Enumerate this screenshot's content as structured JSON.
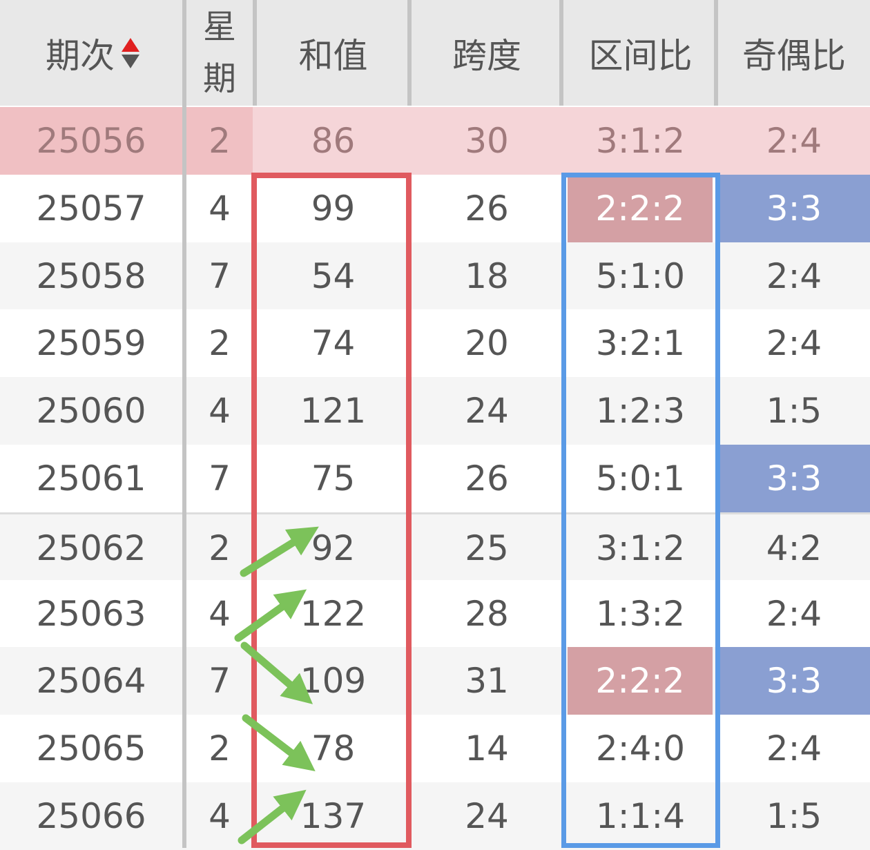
{
  "header": {
    "columns": [
      "期次",
      "星",
      "期",
      "和值",
      "跨度",
      "区间比",
      "奇偶比"
    ],
    "sort_icon": "sort-up-down-icon"
  },
  "colors": {
    "highlight_row": "#f5d5d8",
    "zone_highlight": "#d4a0a4",
    "odd_even_highlight": "#8a9fd2",
    "red_box": "#e05a5f",
    "blue_box": "#5a9ae6",
    "arrow": "#7cc25a"
  },
  "rows": [
    {
      "issue": "25056",
      "weekday": "2",
      "sum": "86",
      "span": "30",
      "zone": "3:1:2",
      "odd_even": "2:4",
      "highlighted": true
    },
    {
      "issue": "25057",
      "weekday": "4",
      "sum": "99",
      "span": "26",
      "zone": "2:2:2",
      "odd_even": "3:3",
      "zone_hl": true,
      "oe_hl": true
    },
    {
      "issue": "25058",
      "weekday": "7",
      "sum": "54",
      "span": "18",
      "zone": "5:1:0",
      "odd_even": "2:4"
    },
    {
      "issue": "25059",
      "weekday": "2",
      "sum": "74",
      "span": "20",
      "zone": "3:2:1",
      "odd_even": "2:4"
    },
    {
      "issue": "25060",
      "weekday": "4",
      "sum": "121",
      "span": "24",
      "zone": "1:2:3",
      "odd_even": "1:5"
    },
    {
      "issue": "25061",
      "weekday": "7",
      "sum": "75",
      "span": "26",
      "zone": "5:0:1",
      "odd_even": "3:3",
      "oe_hl": true
    },
    {
      "issue": "25062",
      "weekday": "2",
      "sum": "92",
      "span": "25",
      "zone": "3:1:2",
      "odd_even": "4:2"
    },
    {
      "issue": "25063",
      "weekday": "4",
      "sum": "122",
      "span": "28",
      "zone": "1:3:2",
      "odd_even": "2:4"
    },
    {
      "issue": "25064",
      "weekday": "7",
      "sum": "109",
      "span": "31",
      "zone": "2:2:2",
      "odd_even": "3:3",
      "zone_hl": true,
      "oe_hl": true
    },
    {
      "issue": "25065",
      "weekday": "2",
      "sum": "78",
      "span": "14",
      "zone": "2:4:0",
      "odd_even": "2:4"
    },
    {
      "issue": "25066",
      "weekday": "4",
      "sum": "137",
      "span": "24",
      "zone": "1:1:4",
      "odd_even": "1:5"
    }
  ]
}
